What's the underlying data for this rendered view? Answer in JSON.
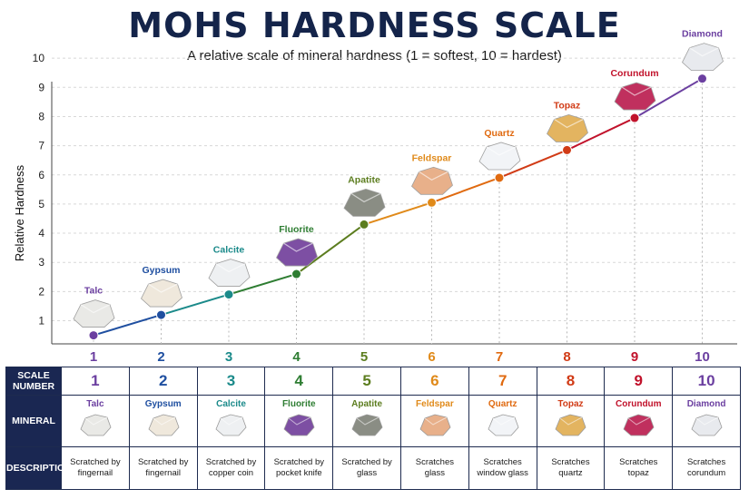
{
  "title": "MOHS HARDNESS SCALE",
  "subtitle": "A relative scale of mineral hardness (1 = softest, 10 = hardest)",
  "chart_data": {
    "type": "line",
    "ylabel": "Relative Hardness",
    "xlabel": "",
    "ylim": [
      0.3,
      10
    ],
    "yticks": [
      1,
      2,
      3,
      4,
      5,
      6,
      7,
      8,
      9,
      10
    ],
    "grid": true,
    "categories": [
      "1",
      "2",
      "3",
      "4",
      "5",
      "6",
      "7",
      "8",
      "9",
      "10"
    ],
    "values": [
      0.5,
      1.2,
      1.9,
      2.6,
      4.3,
      5.05,
      5.9,
      6.85,
      7.95,
      9.3
    ],
    "point_labels": [
      "Talc",
      "Gypsum",
      "Calcite",
      "Fluorite",
      "Apatite",
      "Feldspar",
      "Quartz",
      "Topaz",
      "Corundum",
      "Diamond"
    ],
    "colors": [
      "#6b3fa0",
      "#1f4fa0",
      "#1b8a8a",
      "#2e7d32",
      "#5c7d1f",
      "#e08a1a",
      "#e06a10",
      "#d13b16",
      "#c1122b",
      "#6b3fa0"
    ]
  },
  "table": {
    "row_headers": [
      "SCALE NUMBER",
      "MINERAL",
      "DESCRIPTION"
    ],
    "scale_numbers": [
      "1",
      "2",
      "3",
      "4",
      "5",
      "6",
      "7",
      "8",
      "9",
      "10"
    ],
    "minerals": [
      "Talc",
      "Gypsum",
      "Calcite",
      "Fluorite",
      "Apatite",
      "Feldspar",
      "Quartz",
      "Topaz",
      "Corundum",
      "Diamond"
    ],
    "descriptions": [
      [
        "Scratched by",
        "fingernail"
      ],
      [
        "Scratched by",
        "fingernail"
      ],
      [
        "Scratched by",
        "copper coin"
      ],
      [
        "Scratched by",
        "pocket knife"
      ],
      [
        "Scratched by",
        "glass"
      ],
      [
        "Scratches",
        "glass"
      ],
      [
        "Scratches",
        "window glass"
      ],
      [
        "Scratches",
        "quartz"
      ],
      [
        "Scratches",
        "topaz"
      ],
      [
        "Scratches",
        "corundum"
      ]
    ],
    "mineral_colors": [
      "#e9e9e6",
      "#efe8dc",
      "#eef0f2",
      "#7d4fa3",
      "#8a8d84",
      "#e8b08a",
      "#f2f4f7",
      "#e3b460",
      "#c0305e",
      "#e8eaee"
    ]
  }
}
